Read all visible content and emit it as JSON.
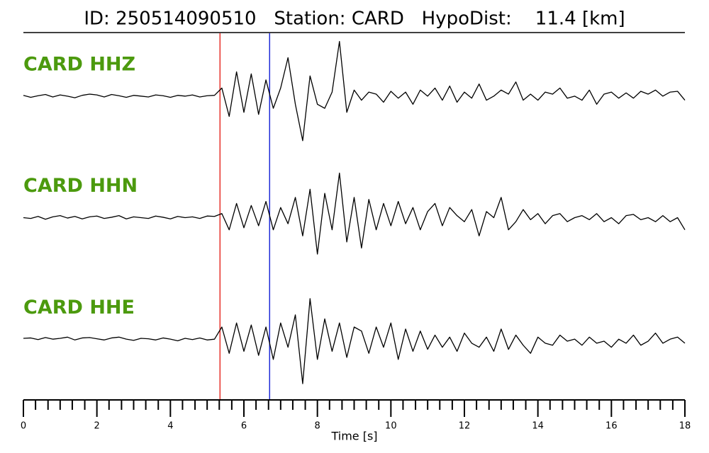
{
  "chart_data": {
    "type": "line",
    "title": "ID: 250514090510   Station: CARD   HypoDist:    11.4 [km]",
    "xlabel": "Time [s]",
    "xlim": [
      0,
      18
    ],
    "xticks": [
      0,
      2,
      4,
      6,
      8,
      10,
      12,
      14,
      16,
      18
    ],
    "xminorticks": [
      0.33,
      0.67,
      1,
      1.33,
      1.67,
      2.33,
      2.67,
      3,
      3.33,
      3.67,
      4.33,
      4.67,
      5,
      5.33,
      5.67,
      6.33,
      6.67,
      7,
      7.33,
      7.67,
      8.33,
      8.67,
      9,
      9.33,
      9.67,
      10.33,
      10.67,
      11,
      11.33,
      11.67,
      12.33,
      12.67,
      13,
      13.33,
      13.67,
      14.33,
      14.67,
      15,
      15.33,
      15.67,
      16.33,
      16.67,
      17,
      17.33,
      17.67
    ],
    "ylim": [
      -1.5,
      1.5
    ],
    "label_color": "#4c9a0e",
    "vlines": [
      {
        "value": 5.35,
        "color": "#e8302a"
      },
      {
        "value": 6.7,
        "color": "#1f2bd8"
      }
    ],
    "x": [
      0,
      0.2,
      0.4,
      0.6,
      0.8,
      1,
      1.2,
      1.4,
      1.6,
      1.8,
      2,
      2.2,
      2.4,
      2.6,
      2.8,
      3,
      3.2,
      3.4,
      3.6,
      3.8,
      4,
      4.2,
      4.4,
      4.6,
      4.8,
      5,
      5.2,
      5.4,
      5.6,
      5.8,
      6,
      6.2,
      6.4,
      6.6,
      6.8,
      7,
      7.2,
      7.4,
      7.6,
      7.8,
      8,
      8.2,
      8.4,
      8.6,
      8.8,
      9,
      9.2,
      9.4,
      9.6,
      9.8,
      10,
      10.2,
      10.4,
      10.6,
      10.8,
      11,
      11.2,
      11.4,
      11.6,
      11.8,
      12,
      12.2,
      12.4,
      12.6,
      12.8,
      13,
      13.2,
      13.4,
      13.6,
      13.8,
      14,
      14.2,
      14.4,
      14.6,
      14.8,
      15,
      15.2,
      15.4,
      15.6,
      15.8,
      16,
      16.2,
      16.4,
      16.6,
      16.8,
      17,
      17.2,
      17.4,
      17.6,
      17.8,
      18
    ],
    "series": [
      {
        "name": "CARD HHZ",
        "color": "#000000",
        "values": [
          0.02,
          -0.03,
          0.01,
          0.04,
          -0.02,
          0.03,
          0.0,
          -0.04,
          0.02,
          0.05,
          0.03,
          -0.02,
          0.04,
          0.01,
          -0.03,
          0.02,
          0.0,
          -0.02,
          0.03,
          0.01,
          -0.03,
          0.02,
          0.0,
          0.03,
          -0.02,
          0.01,
          0.02,
          0.2,
          -0.5,
          0.6,
          -0.4,
          0.55,
          -0.45,
          0.4,
          -0.3,
          0.2,
          0.95,
          -0.2,
          -1.1,
          0.5,
          -0.2,
          -0.3,
          0.1,
          1.35,
          -0.4,
          0.15,
          -0.1,
          0.1,
          0.05,
          -0.15,
          0.12,
          -0.05,
          0.1,
          -0.2,
          0.15,
          0.0,
          0.2,
          -0.1,
          0.25,
          -0.15,
          0.1,
          -0.05,
          0.3,
          -0.1,
          0.0,
          0.15,
          0.05,
          0.35,
          -0.1,
          0.05,
          -0.1,
          0.1,
          0.05,
          0.2,
          -0.05,
          0.0,
          -0.1,
          0.15,
          -0.2,
          0.05,
          0.1,
          -0.05,
          0.08,
          -0.05,
          0.12,
          0.05,
          0.15,
          0.0,
          0.1,
          0.12,
          -0.1
        ]
      },
      {
        "name": "CARD HHN",
        "color": "#000000",
        "values": [
          0.0,
          -0.02,
          0.03,
          -0.04,
          0.02,
          0.05,
          -0.01,
          0.03,
          -0.03,
          0.02,
          0.04,
          -0.02,
          0.01,
          0.05,
          -0.03,
          0.02,
          0.0,
          -0.02,
          0.04,
          0.01,
          -0.03,
          0.03,
          0.0,
          0.02,
          -0.02,
          0.04,
          0.03,
          0.1,
          -0.3,
          0.35,
          -0.25,
          0.3,
          -0.2,
          0.4,
          -0.3,
          0.25,
          -0.15,
          0.5,
          -0.45,
          0.7,
          -0.9,
          0.6,
          -0.3,
          1.1,
          -0.6,
          0.5,
          -0.75,
          0.45,
          -0.3,
          0.35,
          -0.2,
          0.4,
          -0.15,
          0.25,
          -0.3,
          0.15,
          0.35,
          -0.2,
          0.25,
          0.05,
          -0.1,
          0.2,
          -0.45,
          0.15,
          0.0,
          0.5,
          -0.3,
          -0.1,
          0.2,
          -0.05,
          0.1,
          -0.15,
          0.05,
          0.1,
          -0.1,
          0.0,
          0.05,
          -0.05,
          0.1,
          -0.1,
          0.0,
          -0.15,
          0.05,
          0.08,
          -0.05,
          0.0,
          -0.1,
          0.05,
          -0.1,
          0.0,
          -0.3
        ]
      },
      {
        "name": "CARD HHE",
        "color": "#000000",
        "values": [
          0.02,
          0.03,
          -0.01,
          0.04,
          0.0,
          0.02,
          0.05,
          -0.02,
          0.03,
          0.04,
          0.01,
          -0.02,
          0.03,
          0.05,
          0.0,
          -0.03,
          0.02,
          0.01,
          -0.02,
          0.03,
          0.0,
          -0.04,
          0.02,
          -0.01,
          0.03,
          -0.02,
          0.0,
          0.3,
          -0.35,
          0.4,
          -0.3,
          0.35,
          -0.4,
          0.3,
          -0.5,
          0.4,
          -0.2,
          0.6,
          -1.1,
          1.0,
          -0.5,
          0.5,
          -0.3,
          0.4,
          -0.45,
          0.3,
          0.2,
          -0.35,
          0.3,
          -0.2,
          0.4,
          -0.5,
          0.25,
          -0.3,
          0.2,
          -0.25,
          0.1,
          -0.2,
          0.05,
          -0.3,
          0.15,
          -0.1,
          -0.2,
          0.05,
          -0.3,
          0.25,
          -0.25,
          0.1,
          -0.15,
          -0.35,
          0.05,
          -0.1,
          -0.15,
          0.1,
          -0.05,
          0.0,
          -0.15,
          0.05,
          -0.1,
          -0.05,
          -0.2,
          0.0,
          -0.1,
          0.1,
          -0.15,
          -0.05,
          0.15,
          -0.1,
          0.0,
          0.05,
          -0.1
        ]
      }
    ]
  }
}
